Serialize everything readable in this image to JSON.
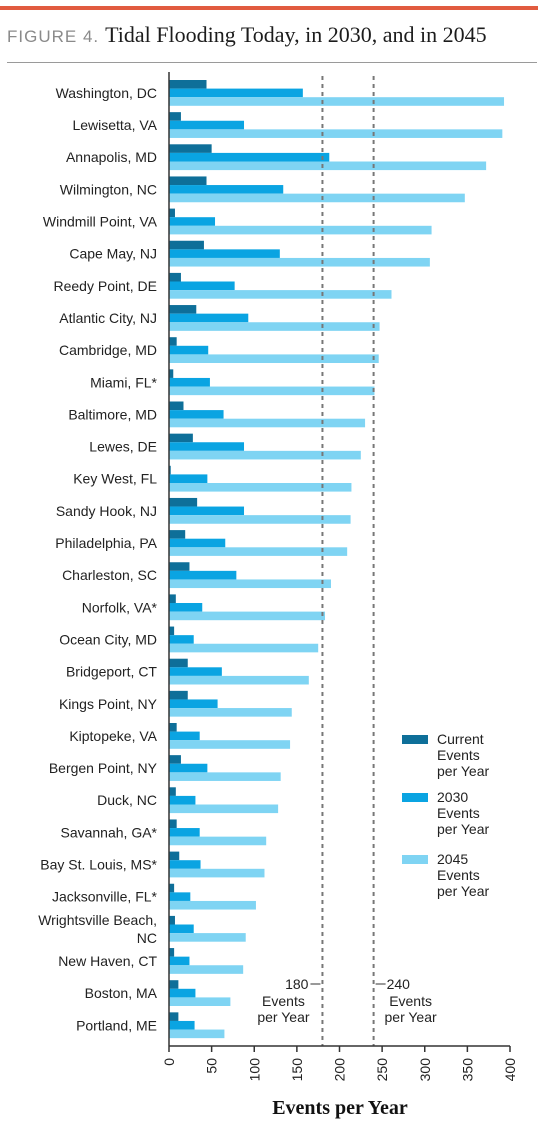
{
  "figure": {
    "label": "FIGURE 4.",
    "title": "Tidal Flooding Today, in 2030, and in 2045"
  },
  "colors": {
    "accent_rule": "#e15b3f",
    "current": "#0e6f99",
    "y2030": "#0aa4e2",
    "y2045": "#7fd4f3",
    "ref_line": "#777777",
    "axis": "#333333"
  },
  "chart_data": {
    "type": "bar",
    "orientation": "horizontal",
    "xlabel": "Events per Year",
    "xlim": [
      0,
      400
    ],
    "xticks": [
      "0",
      "50",
      "100",
      "150",
      "200",
      "250",
      "300",
      "350",
      "400"
    ],
    "grid": false,
    "legend_position": "right",
    "categories": [
      "Washington, DC",
      "Lewisetta, VA",
      "Annapolis, MD",
      "Wilmington, NC",
      "Windmill Point, VA",
      "Cape May, NJ",
      "Reedy Point, DE",
      "Atlantic City, NJ",
      "Cambridge, MD",
      "Miami, FL*",
      "Baltimore, MD",
      "Lewes, DE",
      "Key West, FL",
      "Sandy Hook, NJ",
      "Philadelphia, PA",
      "Charleston, SC",
      "Norfolk, VA*",
      "Ocean City, MD",
      "Bridgeport, CT",
      "Kings Point, NY",
      "Kiptopeke, VA",
      "Bergen Point, NY",
      "Duck, NC",
      "Savannah, GA*",
      "Bay St. Louis, MS*",
      "Jacksonville, FL*",
      "Wrightsville Beach, NC",
      "New Haven, CT",
      "Boston, MA",
      "Portland, ME"
    ],
    "series": [
      {
        "name": "Current Events per Year",
        "values": [
          44,
          14,
          50,
          44,
          7,
          41,
          14,
          32,
          9,
          5,
          17,
          28,
          2,
          33,
          19,
          24,
          8,
          6,
          22,
          22,
          9,
          14,
          8,
          9,
          12,
          6,
          7,
          6,
          11,
          11
        ]
      },
      {
        "name": "2030 Events per Year",
        "values": [
          157,
          88,
          188,
          134,
          54,
          130,
          77,
          93,
          46,
          48,
          64,
          88,
          45,
          88,
          66,
          79,
          39,
          29,
          62,
          57,
          36,
          45,
          31,
          36,
          37,
          25,
          29,
          24,
          31,
          30
        ]
      },
      {
        "name": "2045 Events per Year",
        "values": [
          393,
          391,
          372,
          347,
          308,
          306,
          261,
          247,
          246,
          241,
          230,
          225,
          214,
          213,
          209,
          190,
          183,
          175,
          164,
          144,
          142,
          131,
          128,
          114,
          112,
          102,
          90,
          87,
          72,
          65
        ]
      }
    ],
    "reference_lines": [
      {
        "x": 180,
        "label_value": "180",
        "label_text": "Events per Year"
      },
      {
        "x": 240,
        "label_value": "240",
        "label_text": "Events per Year"
      }
    ]
  }
}
